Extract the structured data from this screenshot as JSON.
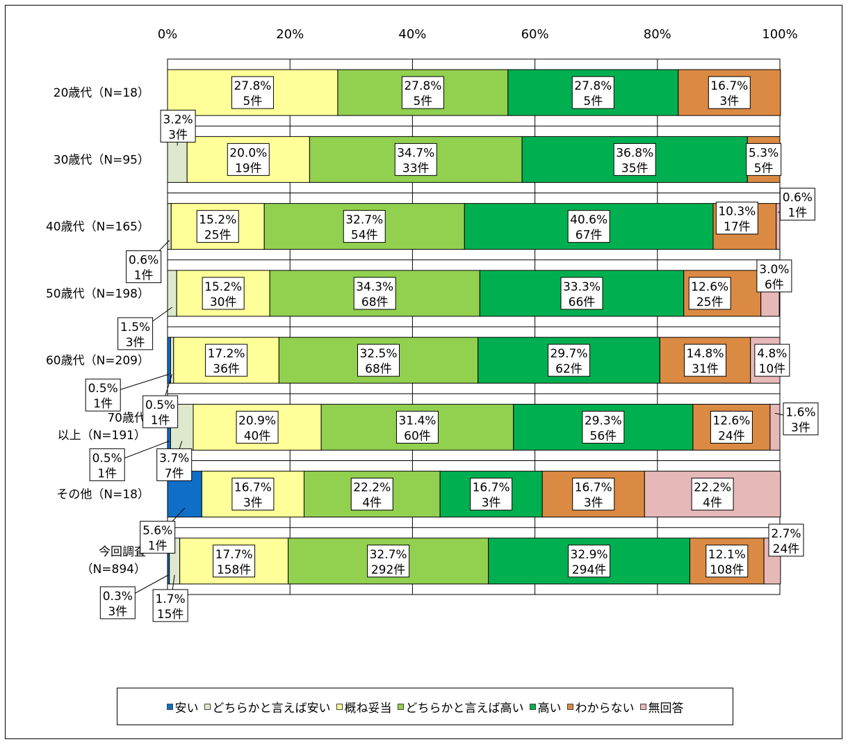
{
  "chart_data": {
    "type": "bar",
    "orientation": "horizontal",
    "stacked": "percent",
    "xlim": [
      0,
      100
    ],
    "x_ticks": [
      "0%",
      "20%",
      "40%",
      "60%",
      "80%",
      "100%"
    ],
    "grid": true,
    "legend_position": "bottom",
    "categories": [
      "20歳代（N=18）",
      "30歳代（N=95）",
      "40歳代（N=165）",
      "50歳代（N=198）",
      "60歳代（N=209）",
      [
        "70歳代",
        "以上（N=191）"
      ],
      "その他（N=18）",
      [
        "今回調査",
        "（N=894）"
      ]
    ],
    "series": [
      {
        "name": "安い",
        "color": "#0f6fc6",
        "values": [
          0,
          0,
          0,
          0,
          0.5,
          0.5,
          5.6,
          0.3
        ],
        "counts": [
          "",
          "",
          "",
          "",
          "1件",
          "1件",
          "1件",
          "3件"
        ],
        "labels": [
          "",
          "",
          "",
          "",
          "0.5%",
          "0.5%",
          "5.6%",
          "0.3%"
        ]
      },
      {
        "name": "どちらかと言えば安い",
        "color": "#dde8cc",
        "values": [
          0,
          3.2,
          0.6,
          1.5,
          0.5,
          3.7,
          0,
          1.7
        ],
        "counts": [
          "",
          "3件",
          "1件",
          "3件",
          "1件",
          "7件",
          "",
          "15件"
        ],
        "labels": [
          "",
          "3.2%",
          "0.6%",
          "1.5%",
          "0.5%",
          "3.7%",
          "",
          "1.7%"
        ]
      },
      {
        "name": "概ね妥当",
        "color": "#ffff99",
        "values": [
          27.8,
          20.0,
          15.2,
          15.2,
          17.2,
          20.9,
          16.7,
          17.7
        ],
        "counts": [
          "5件",
          "19件",
          "25件",
          "30件",
          "36件",
          "40件",
          "3件",
          "158件"
        ],
        "labels": [
          "27.8%",
          "20.0%",
          "15.2%",
          "15.2%",
          "17.2%",
          "20.9%",
          "16.7%",
          "17.7%"
        ]
      },
      {
        "name": "どちらかと言えば高い",
        "color": "#92d050",
        "values": [
          27.8,
          34.7,
          32.7,
          34.3,
          32.5,
          31.4,
          22.2,
          32.7
        ],
        "counts": [
          "5件",
          "33件",
          "54件",
          "68件",
          "68件",
          "60件",
          "4件",
          "292件"
        ],
        "labels": [
          "27.8%",
          "34.7%",
          "32.7%",
          "34.3%",
          "32.5%",
          "31.4%",
          "22.2%",
          "32.7%"
        ]
      },
      {
        "name": "高い",
        "color": "#00b050",
        "values": [
          27.8,
          36.8,
          40.6,
          33.3,
          29.7,
          29.3,
          16.7,
          32.9
        ],
        "counts": [
          "5件",
          "35件",
          "67件",
          "66件",
          "62件",
          "56件",
          "3件",
          "294件"
        ],
        "labels": [
          "27.8%",
          "36.8%",
          "40.6%",
          "33.3%",
          "29.7%",
          "29.3%",
          "16.7%",
          "32.9%"
        ]
      },
      {
        "name": "わからない",
        "color": "#db8a43",
        "values": [
          16.7,
          5.3,
          10.3,
          12.6,
          14.8,
          12.6,
          16.7,
          12.1
        ],
        "counts": [
          "3件",
          "5件",
          "17件",
          "25件",
          "31件",
          "24件",
          "3件",
          "108件"
        ],
        "labels": [
          "16.7%",
          "5.3%",
          "10.3%",
          "12.6%",
          "14.8%",
          "12.6%",
          "16.7%",
          "12.1%"
        ]
      },
      {
        "name": "無回答",
        "color": "#e6b9b8",
        "values": [
          0,
          0,
          0.6,
          3.0,
          4.8,
          1.6,
          22.2,
          2.7
        ],
        "counts": [
          "",
          "",
          "1件",
          "6件",
          "10件",
          "3件",
          "4件",
          "24件"
        ],
        "labels": [
          "",
          "",
          "0.6%",
          "3.0%",
          "4.8%",
          "1.6%",
          "22.2%",
          "2.7%"
        ]
      }
    ]
  }
}
